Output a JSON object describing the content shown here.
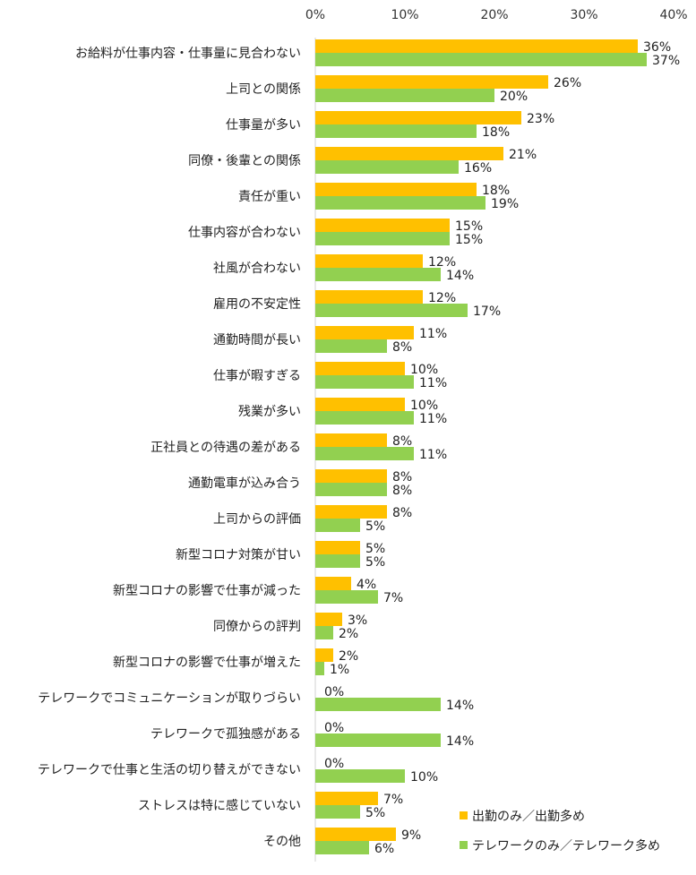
{
  "chart_data": {
    "type": "bar",
    "orientation": "horizontal",
    "xlim": [
      0,
      40
    ],
    "ticks": [
      "0%",
      "10%",
      "20%",
      "30%",
      "40%"
    ],
    "grid": false,
    "legend_position": "bottom-right",
    "categories": [
      "お給料が仕事内容・仕事量に見合わない",
      "上司との関係",
      "仕事量が多い",
      "同僚・後輩との関係",
      "責任が重い",
      "仕事内容が合わない",
      "社風が合わない",
      "雇用の不安定性",
      "通勤時間が長い",
      "仕事が暇すぎる",
      "残業が多い",
      "正社員との待遇の差がある",
      "通勤電車が込み合う",
      "上司からの評価",
      "新型コロナ対策が甘い",
      "新型コロナの影響で仕事が減った",
      "同僚からの評判",
      "新型コロナの影響で仕事が増えた",
      "テレワークでコミュニケーションが取りづらい",
      "テレワークで孤独感がある",
      "テレワークで仕事と生活の切り替えができない",
      "ストレスは特に感じていない",
      "その他"
    ],
    "series": [
      {
        "name": "出勤のみ／出勤多め",
        "color": "#FFC000",
        "values": [
          36,
          26,
          23,
          21,
          18,
          15,
          12,
          12,
          11,
          10,
          10,
          8,
          8,
          8,
          5,
          4,
          3,
          2,
          0,
          0,
          0,
          7,
          9
        ],
        "labels": [
          "36%",
          "26%",
          "23%",
          "21%",
          "18%",
          "15%",
          "12%",
          "12%",
          "11%",
          "10%",
          "10%",
          "8%",
          "8%",
          "8%",
          "5%",
          "4%",
          "3%",
          "2%",
          "0%",
          "0%",
          "0%",
          "7%",
          "9%"
        ]
      },
      {
        "name": "テレワークのみ／テレワーク多め",
        "color": "#92D050",
        "values": [
          37,
          20,
          18,
          16,
          19,
          15,
          14,
          17,
          8,
          11,
          11,
          11,
          8,
          5,
          5,
          7,
          2,
          1,
          14,
          14,
          10,
          5,
          6
        ],
        "labels": [
          "37%",
          "20%",
          "18%",
          "16%",
          "19%",
          "15%",
          "14%",
          "17%",
          "8%",
          "11%",
          "11%",
          "11%",
          "8%",
          "5%",
          "5%",
          "7%",
          "2%",
          "1%",
          "14%",
          "14%",
          "10%",
          "5%",
          "6%"
        ]
      }
    ]
  }
}
